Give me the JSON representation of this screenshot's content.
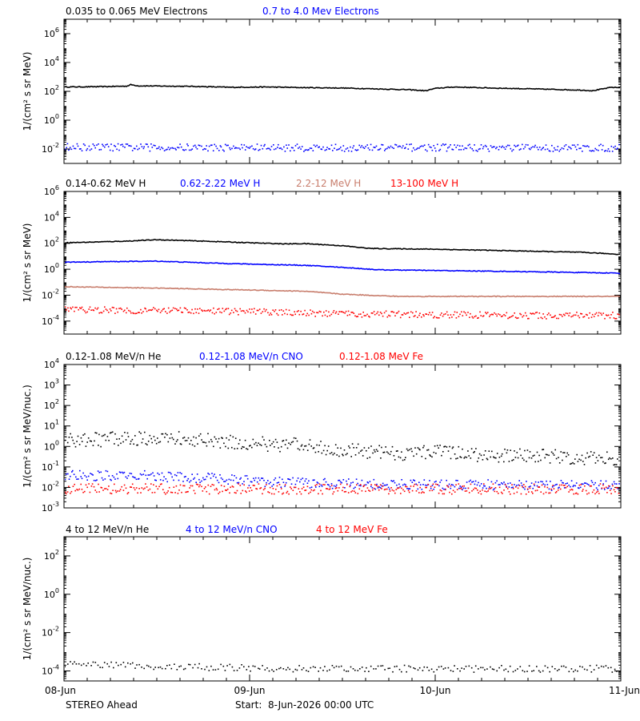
{
  "footer": {
    "spacecraft": "STEREO Ahead",
    "start_label": "Start:  8-Jun-2026 00:00 UTC"
  },
  "colors": {
    "black": "#000000",
    "blue": "#0000ff",
    "tan": "#c87d6c",
    "red": "#ff0000"
  },
  "chart_data": [
    {
      "type": "scatter",
      "yscale": "log",
      "ylabel": "1/(cm² s sr MeV)",
      "ylim": [
        0.001,
        10000000
      ],
      "yticks": [
        {
          "base": "10",
          "exp": "6",
          "value": 1000000
        },
        {
          "base": "10",
          "exp": "4",
          "value": 10000
        },
        {
          "base": "10",
          "exp": "2",
          "value": 100
        },
        {
          "base": "10",
          "exp": "0",
          "value": 1
        },
        {
          "base": "10",
          "exp": "-2",
          "value": 0.01
        }
      ],
      "xlim_days": [
        0,
        3
      ],
      "grid": false,
      "series": [
        {
          "name": "0.035 to 0.065 MeV Electrons",
          "color": "#000000",
          "style": "line",
          "points": [
            [
              0,
              200
            ],
            [
              0.2,
              210
            ],
            [
              0.34,
              230
            ],
            [
              0.36,
              290
            ],
            [
              0.4,
              240
            ],
            [
              0.7,
              220
            ],
            [
              0.9,
              190
            ],
            [
              1.1,
              200
            ],
            [
              1.3,
              180
            ],
            [
              1.5,
              170
            ],
            [
              1.85,
              130
            ],
            [
              1.95,
              110
            ],
            [
              2.0,
              160
            ],
            [
              2.1,
              200
            ],
            [
              2.3,
              170
            ],
            [
              2.6,
              140
            ],
            [
              2.8,
              120
            ],
            [
              2.85,
              110
            ],
            [
              2.95,
              190
            ],
            [
              3.0,
              180
            ]
          ]
        },
        {
          "name": "0.7 to 4.0 Mev Electrons",
          "color": "#0000ff",
          "style": "scatter",
          "points": [
            [
              0,
              0.015
            ],
            [
              0.5,
              0.014
            ],
            [
              1.0,
              0.014
            ],
            [
              1.5,
              0.013
            ],
            [
              2.0,
              0.014
            ],
            [
              2.5,
              0.013
            ],
            [
              3.0,
              0.013
            ]
          ]
        }
      ]
    },
    {
      "type": "scatter",
      "yscale": "log",
      "ylabel": "1/(cm² s sr MeV)",
      "ylim": [
        1e-05,
        1000000
      ],
      "yticks": [
        {
          "base": "10",
          "exp": "6",
          "value": 1000000
        },
        {
          "base": "10",
          "exp": "4",
          "value": 10000
        },
        {
          "base": "10",
          "exp": "2",
          "value": 100
        },
        {
          "base": "10",
          "exp": "0",
          "value": 1
        },
        {
          "base": "10",
          "exp": "-2",
          "value": 0.01
        },
        {
          "base": "10",
          "exp": "-4",
          "value": 0.0001
        }
      ],
      "xlim_days": [
        0,
        3
      ],
      "grid": false,
      "series": [
        {
          "name": "0.14-0.62 MeV H",
          "color": "#000000",
          "style": "line",
          "points": [
            [
              0,
              110
            ],
            [
              0.2,
              130
            ],
            [
              0.35,
              150
            ],
            [
              0.5,
              190
            ],
            [
              0.8,
              140
            ],
            [
              1.0,
              110
            ],
            [
              1.2,
              90
            ],
            [
              1.3,
              95
            ],
            [
              1.5,
              65
            ],
            [
              1.65,
              40
            ],
            [
              2.0,
              35
            ],
            [
              2.5,
              25
            ],
            [
              2.8,
              20
            ],
            [
              3.0,
              14
            ]
          ]
        },
        {
          "name": "0.62-2.22 MeV H",
          "color": "#0000ff",
          "style": "line",
          "points": [
            [
              0,
              3.5
            ],
            [
              0.2,
              3.8
            ],
            [
              0.5,
              4.2
            ],
            [
              0.8,
              3.0
            ],
            [
              1.0,
              2.5
            ],
            [
              1.3,
              2.0
            ],
            [
              1.5,
              1.4
            ],
            [
              1.7,
              0.9
            ],
            [
              2.0,
              0.8
            ],
            [
              2.5,
              0.65
            ],
            [
              3.0,
              0.5
            ]
          ]
        },
        {
          "name": "2.2-12 MeV H",
          "color": "#c87d6c",
          "style": "line",
          "points": [
            [
              0,
              0.045
            ],
            [
              0.5,
              0.035
            ],
            [
              1.0,
              0.025
            ],
            [
              1.3,
              0.02
            ],
            [
              1.5,
              0.012
            ],
            [
              1.8,
              0.008
            ],
            [
              2.0,
              0.008
            ],
            [
              2.5,
              0.008
            ],
            [
              3.0,
              0.008
            ]
          ]
        },
        {
          "name": "13-100 MeV H",
          "color": "#ff0000",
          "style": "scatter",
          "points": [
            [
              0,
              0.0009
            ],
            [
              0.5,
              0.0007
            ],
            [
              1.0,
              0.0006
            ],
            [
              1.5,
              0.0004
            ],
            [
              2.0,
              0.00035
            ],
            [
              2.5,
              0.0003
            ],
            [
              3.0,
              0.0003
            ]
          ]
        }
      ]
    },
    {
      "type": "scatter",
      "yscale": "log",
      "ylabel": "1/(cm² s sr MeV/nuc.)",
      "ylim": [
        0.001,
        10000
      ],
      "yticks": [
        {
          "base": "10",
          "exp": "4",
          "value": 10000
        },
        {
          "base": "10",
          "exp": "3",
          "value": 1000
        },
        {
          "base": "10",
          "exp": "2",
          "value": 100
        },
        {
          "base": "10",
          "exp": "1",
          "value": 10
        },
        {
          "base": "10",
          "exp": "0",
          "value": 1
        },
        {
          "base": "10",
          "exp": "-1",
          "value": 0.1
        },
        {
          "base": "10",
          "exp": "-2",
          "value": 0.01
        },
        {
          "base": "10",
          "exp": "-3",
          "value": 0.001
        }
      ],
      "xlim_days": [
        0,
        3
      ],
      "grid": false,
      "series": [
        {
          "name": "0.12-1.08 MeV/n He",
          "color": "#000000",
          "style": "scatter",
          "points": [
            [
              0,
              2.0
            ],
            [
              0.3,
              2.5
            ],
            [
              0.5,
              3.0
            ],
            [
              0.8,
              2.0
            ],
            [
              1.0,
              1.5
            ],
            [
              1.3,
              1.2
            ],
            [
              1.5,
              0.7
            ],
            [
              1.8,
              0.5
            ],
            [
              2.0,
              0.6
            ],
            [
              2.3,
              0.4
            ],
            [
              2.6,
              0.35
            ],
            [
              3.0,
              0.25
            ]
          ]
        },
        {
          "name": "0.12-1.08 MeV/n CNO",
          "color": "#0000ff",
          "style": "scatter",
          "points": [
            [
              0,
              0.04
            ],
            [
              0.4,
              0.04
            ],
            [
              0.8,
              0.03
            ],
            [
              1.2,
              0.018
            ],
            [
              1.8,
              0.015
            ],
            [
              2.4,
              0.014
            ],
            [
              3.0,
              0.013
            ]
          ]
        },
        {
          "name": "0.12-1.08 MeV Fe",
          "color": "#ff0000",
          "style": "scatter",
          "points": [
            [
              0,
              0.009
            ],
            [
              1.0,
              0.009
            ],
            [
              2.0,
              0.009
            ],
            [
              3.0,
              0.009
            ]
          ]
        }
      ]
    },
    {
      "type": "scatter",
      "yscale": "log",
      "ylabel": "1/(cm² s sr MeV/nuc.)",
      "ylim": [
        3e-05,
        1000
      ],
      "yticks": [
        {
          "base": "10",
          "exp": "2",
          "value": 100
        },
        {
          "base": "10",
          "exp": "0",
          "value": 1
        },
        {
          "base": "10",
          "exp": "-2",
          "value": 0.01
        },
        {
          "base": "10",
          "exp": "-4",
          "value": 0.0001
        }
      ],
      "xlim_days": [
        0,
        3
      ],
      "grid": false,
      "series": [
        {
          "name": "4 to 12 MeV/n He",
          "color": "#000000",
          "style": "scatter",
          "points": [
            [
              0,
              0.00025
            ],
            [
              0.3,
              0.0002
            ],
            [
              0.6,
              0.00018
            ],
            [
              1.0,
              0.00015
            ],
            [
              1.5,
              0.00014
            ],
            [
              2.0,
              0.00014
            ],
            [
              2.5,
              0.00014
            ],
            [
              3.0,
              0.00014
            ]
          ]
        },
        {
          "name": "4 to 12 MeV/n CNO",
          "color": "#0000ff",
          "style": "scatter",
          "points": [
            [
              0.85,
              3e-05
            ],
            [
              1.75,
              3e-05
            ]
          ]
        },
        {
          "name": "4 to 12 MeV Fe",
          "color": "#ff0000",
          "style": "scatter",
          "points": [
            [
              1.65,
              3e-05
            ]
          ]
        }
      ]
    }
  ],
  "xaxis": {
    "ticks": [
      {
        "label": "08-Jun",
        "day": 0
      },
      {
        "label": "09-Jun",
        "day": 1
      },
      {
        "label": "10-Jun",
        "day": 2
      },
      {
        "label": "11-Jun",
        "day": 3
      }
    ]
  }
}
